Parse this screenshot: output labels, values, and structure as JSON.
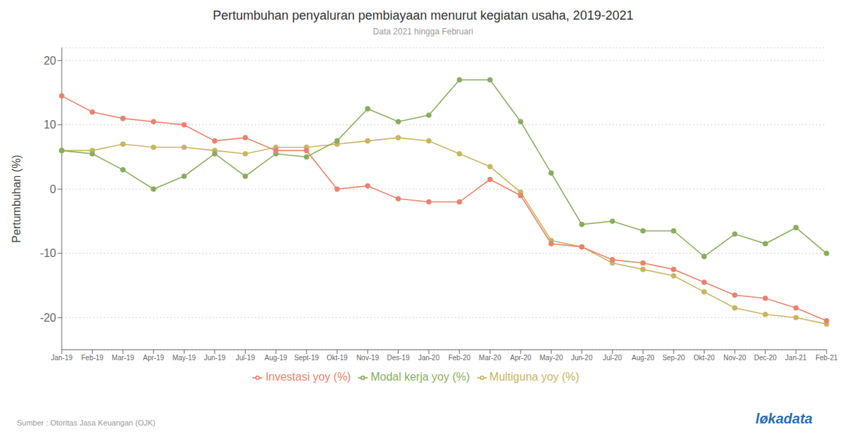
{
  "chart_data": {
    "type": "line",
    "title": "Pertumbuhan penyaluran pembiayaan menurut kegiatan usaha, 2019-2021",
    "subtitle": "Data 2021 hingga Februari",
    "ylabel": "Pertumbuhan (%)",
    "annotations": [
      "Sumber : Otoritas Jasa Keuangan (OJK)",
      "løkadata"
    ],
    "categories": [
      "Jan-19",
      "Feb-19",
      "Mar-19",
      "Apr-19",
      "May-19",
      "Jun-19",
      "Jul-19",
      "Aug-19",
      "Sept-19",
      "Okt-19",
      "Nov-19",
      "Des-19",
      "Jan-20",
      "Feb-20",
      "Mar-20",
      "Apr-20",
      "May-20",
      "Jun-20",
      "Jul-20",
      "Aug-20",
      "Sep-20",
      "Okt-20",
      "Nov-20",
      "Dec-20",
      "Jan-21",
      "Feb-21"
    ],
    "series": [
      {
        "name": "Multiguna yoy (%)",
        "color": "#c8b560",
        "marker": "circle",
        "values": [
          6.0,
          6.0,
          7.0,
          6.5,
          6.5,
          6.0,
          5.5,
          6.5,
          6.5,
          7.0,
          7.5,
          8.0,
          7.5,
          5.5,
          3.5,
          -0.5,
          -8.0,
          -9.0,
          -11.5,
          -12.5,
          -13.5,
          -16.0,
          -18.5,
          -19.5,
          -20.0,
          -21.0
        ]
      },
      {
        "name": "Modal kerja yoy (%)",
        "color": "#8aac5e",
        "marker": "circle",
        "values": [
          6.0,
          5.5,
          3.0,
          0.0,
          2.0,
          5.5,
          2.0,
          5.5,
          5.0,
          7.5,
          12.5,
          10.5,
          11.5,
          17.0,
          17.0,
          10.5,
          2.5,
          -5.5,
          -5.0,
          -6.5,
          -6.5,
          -10.5,
          -7.0,
          -8.5,
          -6.0,
          -10.0
        ]
      },
      {
        "name": "Investasi yoy (%)",
        "color": "#e8836e",
        "marker": "circle",
        "values": [
          14.5,
          12.0,
          11.0,
          10.5,
          10.0,
          7.5,
          8.0,
          6.0,
          6.0,
          0.0,
          0.5,
          -1.5,
          -2.0,
          -2.0,
          1.5,
          -1.0,
          -8.5,
          -9.0,
          -11.0,
          -11.5,
          -12.5,
          -14.5,
          -16.5,
          -17.0,
          -18.5,
          -20.5
        ]
      }
    ],
    "ylim": [
      -25,
      22
    ],
    "yticks": [
      -20,
      -10,
      0,
      10,
      20
    ],
    "grid": true,
    "legend": "bottom"
  }
}
